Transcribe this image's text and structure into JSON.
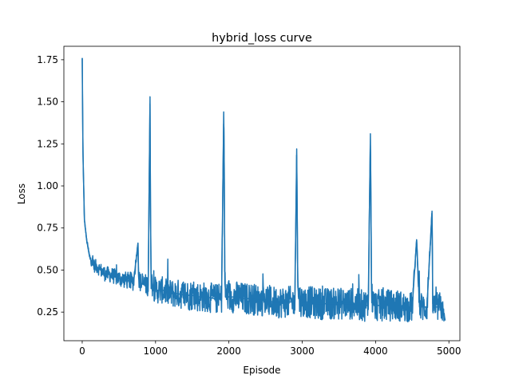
{
  "chart_data": {
    "type": "line",
    "title": "hybrid_loss curve",
    "xlabel": "Episode",
    "ylabel": "Loss",
    "xlim": [
      -250,
      5150
    ],
    "ylim": [
      0.08,
      1.83
    ],
    "xticks": [
      0,
      1000,
      2000,
      3000,
      4000,
      5000
    ],
    "yticks": [
      0.25,
      0.5,
      0.75,
      1.0,
      1.25,
      1.5,
      1.75
    ],
    "xtick_labels": [
      "0",
      "1000",
      "2000",
      "3000",
      "4000",
      "5000"
    ],
    "ytick_labels": [
      "0.25",
      "0.50",
      "0.75",
      "1.00",
      "1.25",
      "1.50",
      "1.75"
    ],
    "grid": false,
    "legend": "none",
    "series": [
      {
        "color": "#1f77b4",
        "x": [
          0,
          10,
          30,
          60,
          100,
          150,
          200,
          300,
          400,
          500,
          600,
          700,
          760,
          770,
          800,
          900,
          925,
          930,
          940,
          960,
          1000,
          1100,
          1200,
          1300,
          1400,
          1500,
          1600,
          1700,
          1800,
          1900,
          1930,
          1935,
          1945,
          1960,
          2000,
          2100,
          2200,
          2300,
          2400,
          2500,
          2600,
          2700,
          2800,
          2900,
          2925,
          2930,
          2940,
          2960,
          3000,
          3100,
          3200,
          3300,
          3400,
          3500,
          3600,
          3700,
          3800,
          3900,
          3930,
          3935,
          3945,
          3960,
          4000,
          4100,
          4200,
          4300,
          4400,
          4500,
          4560,
          4600,
          4700,
          4770,
          4780,
          4800,
          4900,
          4950
        ],
        "y": [
          1.76,
          1.2,
          0.8,
          0.68,
          0.58,
          0.53,
          0.52,
          0.48,
          0.47,
          0.45,
          0.44,
          0.43,
          0.66,
          0.45,
          0.42,
          0.41,
          1.53,
          0.9,
          0.45,
          0.4,
          0.38,
          0.38,
          0.36,
          0.36,
          0.35,
          0.35,
          0.34,
          0.34,
          0.33,
          0.33,
          1.44,
          1.2,
          0.42,
          0.36,
          0.34,
          0.34,
          0.33,
          0.33,
          0.32,
          0.32,
          0.31,
          0.31,
          0.31,
          0.31,
          1.22,
          0.9,
          0.4,
          0.33,
          0.31,
          0.31,
          0.3,
          0.3,
          0.3,
          0.3,
          0.3,
          0.3,
          0.29,
          0.29,
          1.31,
          1.0,
          0.4,
          0.3,
          0.29,
          0.29,
          0.29,
          0.29,
          0.28,
          0.28,
          0.68,
          0.28,
          0.28,
          0.85,
          0.3,
          0.28,
          0.28,
          0.2
        ],
        "noise_amplitude": [
          0,
          0,
          0.01,
          0.02,
          0.05,
          0.08,
          0.08,
          0.09,
          0.09,
          0.1,
          0.1,
          0.11,
          0,
          0.11,
          0.12,
          0.13,
          0,
          0,
          0.13,
          0.14,
          0.16,
          0.16,
          0.17,
          0.17,
          0.18,
          0.18,
          0.18,
          0.18,
          0.18,
          0.18,
          0,
          0,
          0.18,
          0.18,
          0.19,
          0.19,
          0.19,
          0.19,
          0.19,
          0.19,
          0.19,
          0.19,
          0.19,
          0.19,
          0,
          0,
          0.19,
          0.19,
          0.19,
          0.19,
          0.19,
          0.19,
          0.19,
          0.19,
          0.19,
          0.19,
          0.19,
          0.19,
          0,
          0,
          0.19,
          0.19,
          0.19,
          0.19,
          0.19,
          0.19,
          0.18,
          0.18,
          0,
          0.18,
          0.18,
          0,
          0.18,
          0.18,
          0.18,
          0.02
        ]
      }
    ]
  }
}
